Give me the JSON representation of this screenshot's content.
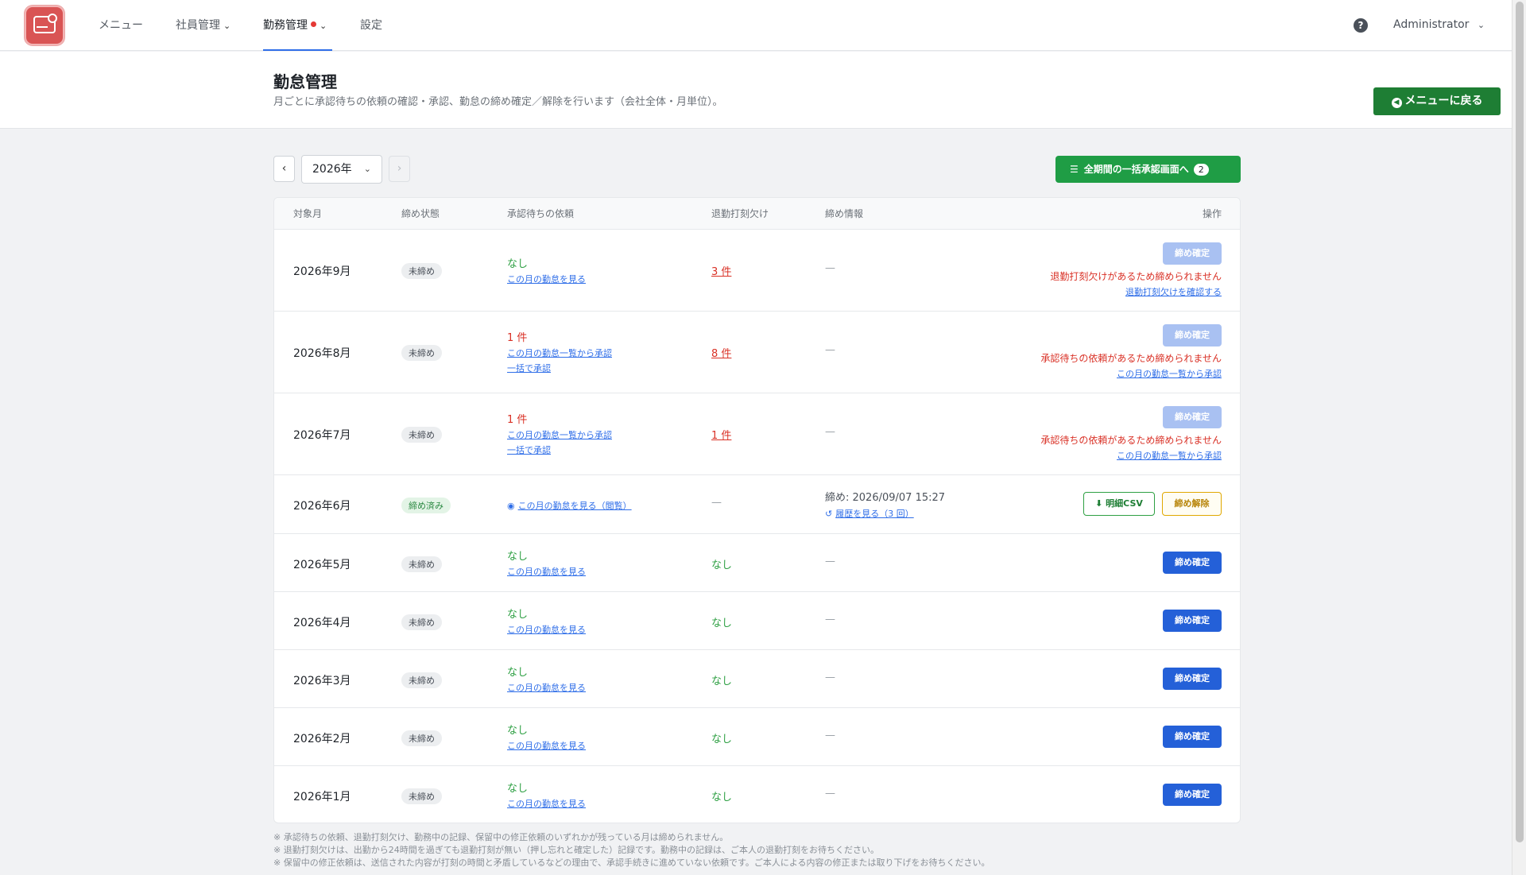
{
  "nav": {
    "items": [
      "メニュー",
      "社員管理",
      "勤務管理",
      "設定"
    ],
    "user": "Administrator"
  },
  "header": {
    "title": "勤怠管理",
    "subtitle": "月ごとに承認待ちの依頼の確認・承認、勤怠の締め確定／解除を行います（会社全体・月単位）。",
    "back_button": "メニューに戻る"
  },
  "toolbar": {
    "year": "2026年",
    "bulk_button": "全期間の一括承認画面へ",
    "bulk_count": "2"
  },
  "table": {
    "columns": [
      "対象月",
      "締め状態",
      "承認待ちの依頼",
      "退勤打刻欠け",
      "締め情報",
      "操作"
    ],
    "rows": [
      {
        "month": "2026年9月",
        "status": "未締め",
        "pending": "なし",
        "pending_link1": "この月の勤怠を見る",
        "missing": "3 件",
        "closing": "—",
        "action": "締め確定",
        "warn": "退勤打刻欠けがあるため締められません",
        "warn_link": "退勤打刻欠けを確認する"
      },
      {
        "month": "2026年8月",
        "status": "未締め",
        "pending": "1 件",
        "pending_link1": "この月の勤怠一覧から承認",
        "pending_link2": "一括で承認",
        "missing": "8 件",
        "closing": "—",
        "action": "締め確定",
        "warn": "承認待ちの依頼があるため締められません",
        "warn_link": "この月の勤怠一覧から承認"
      },
      {
        "month": "2026年7月",
        "status": "未締め",
        "pending": "1 件",
        "pending_link1": "この月の勤怠一覧から承認",
        "pending_link2": "一括で承認",
        "missing": "1 件",
        "closing": "—",
        "action": "締め確定",
        "warn": "承認待ちの依頼があるため締められません",
        "warn_link": "この月の勤怠一覧から承認"
      },
      {
        "month": "2026年6月",
        "status": "締め済み",
        "pending_link1": "この月の勤怠を見る（閲覧）",
        "missing": "—",
        "closing": "締め: 2026/09/07 15:27",
        "closing_link": "履歴を見る（3 回）",
        "csv": "明細CSV",
        "unlock": "締め解除"
      },
      {
        "month": "2026年5月",
        "status": "未締め",
        "pending": "なし",
        "pending_link1": "この月の勤怠を見る",
        "missing": "なし",
        "closing": "—",
        "action": "締め確定"
      },
      {
        "month": "2026年4月",
        "status": "未締め",
        "pending": "なし",
        "pending_link1": "この月の勤怠を見る",
        "missing": "なし",
        "closing": "—",
        "action": "締め確定"
      },
      {
        "month": "2026年3月",
        "status": "未締め",
        "pending": "なし",
        "pending_link1": "この月の勤怠を見る",
        "missing": "なし",
        "closing": "—",
        "action": "締め確定"
      },
      {
        "month": "2026年2月",
        "status": "未締め",
        "pending": "なし",
        "pending_link1": "この月の勤怠を見る",
        "missing": "なし",
        "closing": "—",
        "action": "締め確定"
      },
      {
        "month": "2026年1月",
        "status": "未締め",
        "pending": "なし",
        "pending_link1": "この月の勤怠を見る",
        "missing": "なし",
        "closing": "—",
        "action": "締め確定"
      }
    ]
  },
  "notes": [
    "※ 承認待ちの依頼、退勤打刻欠け、勤務中の記録、保留中の修正依頼のいずれかが残っている月は締められません。",
    "※ 退勤打刻欠けは、出勤から24時間を過ぎても退勤打刻が無い（押し忘れと確定した）記録です。勤務中の記録は、ご本人の退勤打刻をお待ちください。",
    "※ 保留中の修正依頼は、送信された内容が打刻の時間と矛盾しているなどの理由で、承認手続きに進めていない依頼です。ご本人による内容の修正または取り下げをお待ちください。"
  ],
  "colors": {
    "primary": "#2460d8",
    "success": "#1f9d45",
    "danger": "#d93025",
    "warning": "#e0a800"
  }
}
